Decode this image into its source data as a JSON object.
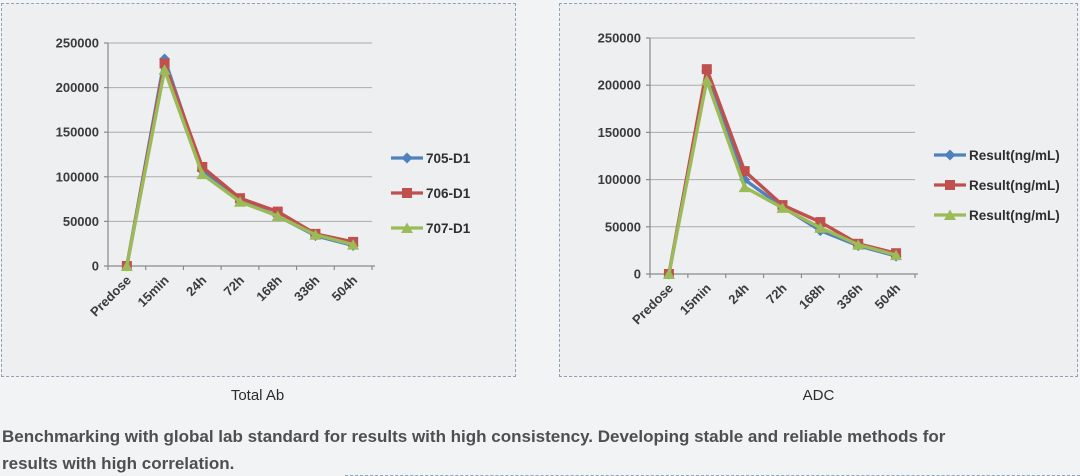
{
  "page": {
    "background": "#f2f3f5",
    "panel_background": "#edeff1",
    "panel_border_color": "#8fa3b5",
    "grid_color": "#ababab",
    "axis_color": "#8a8a8a"
  },
  "caption": {
    "line1": "Benchmarking with global lab standard for results with high consistency. Developing stable and reliable methods for",
    "line2": "results with high correlation."
  },
  "chart_data": [
    {
      "type": "line",
      "title": "Total Ab",
      "categories": [
        "Predose",
        "15min",
        "24h",
        "72h",
        "168h",
        "336h",
        "504h"
      ],
      "series": [
        {
          "name": "705-D1",
          "color": "#4F81BD",
          "marker": "diamond",
          "values": [
            0,
            232000,
            107000,
            74000,
            56000,
            34000,
            23000
          ]
        },
        {
          "name": "706-D1",
          "color": "#C0504D",
          "marker": "square",
          "values": [
            0,
            227000,
            111000,
            76000,
            61000,
            36000,
            27000
          ]
        },
        {
          "name": "707-D1",
          "color": "#9BBB59",
          "marker": "triangle",
          "values": [
            0,
            220000,
            103000,
            72000,
            56000,
            35000,
            24000
          ]
        }
      ],
      "xlabel": "",
      "ylabel": "",
      "ylim": [
        0,
        250000
      ],
      "ytick_step": 50000,
      "ytick_labels": [
        "0",
        "50000",
        "100000",
        "150000",
        "200000",
        "250000"
      ],
      "grid": true,
      "legend_position": "right"
    },
    {
      "type": "line",
      "title": "ADC",
      "categories": [
        "Predose",
        "15min",
        "24h",
        "72h",
        "168h",
        "336h",
        "504h"
      ],
      "series": [
        {
          "name": "Result(ng/mL)",
          "color": "#4F81BD",
          "marker": "diamond",
          "values": [
            0,
            215000,
            100000,
            71000,
            46000,
            30000,
            19000
          ]
        },
        {
          "name": "Result(ng/mL)",
          "color": "#C0504D",
          "marker": "square",
          "values": [
            0,
            217000,
            109000,
            73000,
            55000,
            32000,
            22000
          ]
        },
        {
          "name": "Result(ng/mL)",
          "color": "#9BBB59",
          "marker": "triangle",
          "values": [
            0,
            205000,
            92000,
            70000,
            49000,
            31000,
            20000
          ]
        }
      ],
      "xlabel": "",
      "ylabel": "",
      "ylim": [
        0,
        250000
      ],
      "ytick_step": 50000,
      "ytick_labels": [
        "0",
        "50000",
        "100000",
        "150000",
        "200000",
        "250000"
      ],
      "grid": true,
      "legend_position": "right"
    }
  ]
}
